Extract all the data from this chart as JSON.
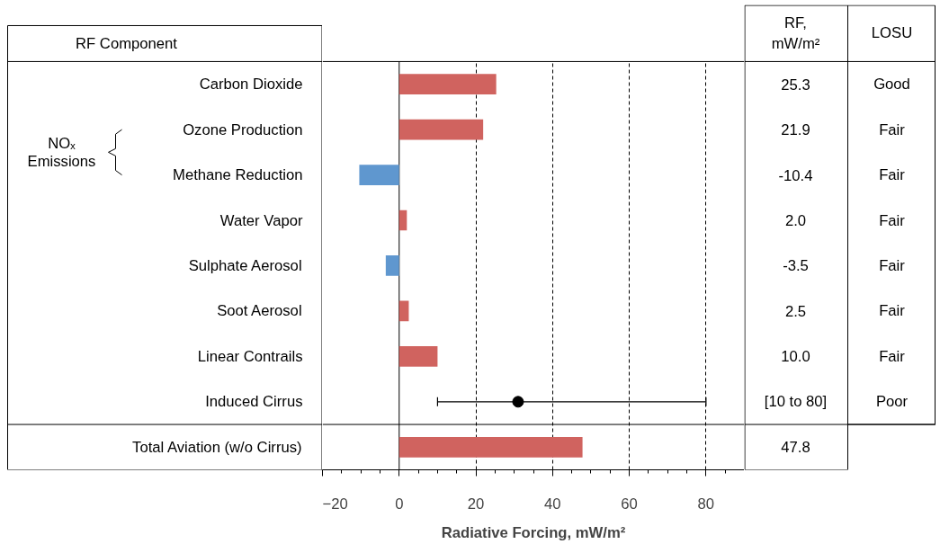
{
  "chart_data": {
    "type": "bar",
    "orientation": "horizontal",
    "xlabel": "Radiative Forcing, mW/m²",
    "categories": [
      "Carbon Dioxide",
      "Ozone Production",
      "Methane Reduction",
      "Water Vapor",
      "Sulphate Aerosol",
      "Soot Aerosol",
      "Linear Contrails",
      "Induced Cirrus",
      "Total Aviation (w/o Cirrus)"
    ],
    "series": [
      {
        "colors": [
          "#d0635f",
          "#d0635f",
          "#5f97cf",
          "#d0635f",
          "#5f97cf",
          "#d0635f",
          "#d0635f",
          "#d0635f",
          "#d0635f"
        ],
        "values": [
          25.3,
          21.9,
          -10.4,
          2.0,
          -3.5,
          2.5,
          10.0,
          null,
          47.8
        ],
        "value_labels": [
          "25.3",
          "21.9",
          "-10.4",
          "2.0",
          "-3.5",
          "2.5",
          "10.0",
          "[10 to 80]",
          "47.8"
        ]
      },
      {
        "type": "scatter",
        "color": "#000000",
        "marker": "circle",
        "values": [
          null,
          null,
          null,
          null,
          null,
          null,
          null,
          31,
          null
        ],
        "errors": [
          null,
          null,
          null,
          null,
          null,
          null,
          null,
          [
            10,
            80
          ],
          null
        ]
      }
    ],
    "xlim": [
      -20,
      90
    ],
    "xticks": [
      -20,
      0,
      20,
      40,
      60,
      80
    ],
    "grid": "x",
    "annotations": [
      "RF Component",
      "RF, mW/m²",
      "LOSU",
      "Good",
      "Fair",
      "Fair",
      "Fair",
      "Fair",
      "Fair",
      "Fair",
      "Poor",
      "NOₓ Emissions"
    ]
  }
}
